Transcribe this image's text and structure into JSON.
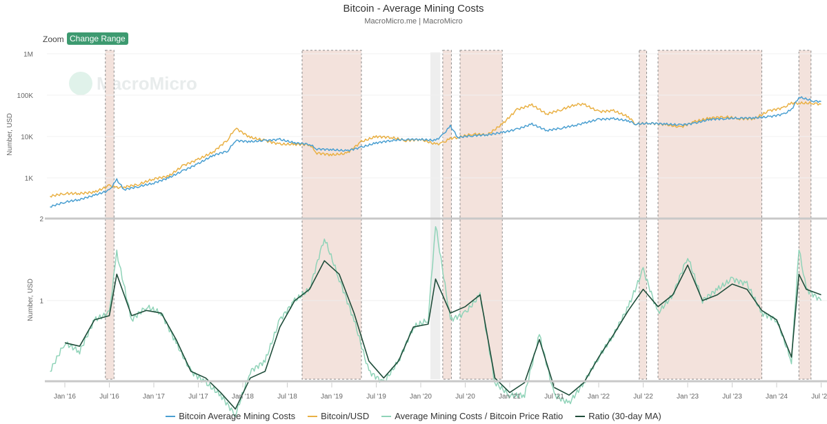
{
  "header": {
    "title": "Bitcoin - Average Mining Costs",
    "subtitle": "MacroMicro.me | MacroMicro",
    "zoom_label": "Zoom",
    "change_range_label": "Change Range",
    "watermark": "MacroMicro"
  },
  "colors": {
    "mining_cost": "#4a9fd1",
    "btc_usd": "#e9b043",
    "ratio": "#8fd3b8",
    "ratio_ma": "#1f4d3a",
    "shade": "#f3e2dc",
    "shade_grey": "#eeeeee",
    "button": "#3d9a70"
  },
  "chart_data": [
    {
      "type": "line",
      "panel": "top",
      "yscale": "log",
      "ylabel": "Number, USD",
      "yticks": [
        "1M",
        "100K",
        "10K",
        "1K"
      ],
      "ytick_values": [
        1000000,
        100000,
        10000,
        1000
      ],
      "x": [
        "2015-11",
        "2016-01",
        "2016-03",
        "2016-05",
        "2016-07",
        "2016-08",
        "2016-09",
        "2016-11",
        "2017-01",
        "2017-03",
        "2017-05",
        "2017-07",
        "2017-09",
        "2017-11",
        "2017-12",
        "2018-02",
        "2018-04",
        "2018-06",
        "2018-08",
        "2018-10",
        "2018-11",
        "2019-01",
        "2019-03",
        "2019-05",
        "2019-07",
        "2019-09",
        "2019-11",
        "2020-01",
        "2020-03",
        "2020-04",
        "2020-05",
        "2020-06",
        "2020-08",
        "2020-10",
        "2020-12",
        "2021-02",
        "2021-04",
        "2021-06",
        "2021-08",
        "2021-10",
        "2021-11",
        "2022-01",
        "2022-03",
        "2022-05",
        "2022-06",
        "2022-08",
        "2022-10",
        "2022-12",
        "2023-02",
        "2023-04",
        "2023-06",
        "2023-08",
        "2023-10",
        "2023-12",
        "2024-02",
        "2024-03",
        "2024-04",
        "2024-06",
        "2024-07"
      ],
      "series": [
        {
          "name": "Bitcoin Average Mining Costs",
          "values": [
            200,
            260,
            300,
            380,
            500,
            900,
            520,
            620,
            750,
            1000,
            1500,
            2200,
            3500,
            4500,
            8000,
            7500,
            8000,
            8500,
            7000,
            6500,
            5000,
            4800,
            4500,
            5500,
            7000,
            8000,
            8500,
            8500,
            8000,
            11000,
            18000,
            9500,
            10500,
            11000,
            12500,
            15000,
            20000,
            14000,
            16000,
            19000,
            21000,
            26000,
            27000,
            24000,
            20000,
            21000,
            20000,
            19000,
            21000,
            26000,
            27000,
            28000,
            28000,
            30000,
            35000,
            45000,
            90000,
            72000,
            70000
          ]
        },
        {
          "name": "Bitcoin/USD",
          "values": [
            360,
            420,
            420,
            450,
            650,
            580,
            600,
            700,
            950,
            1100,
            2000,
            2800,
            4200,
            8500,
            16000,
            9500,
            8000,
            6500,
            6500,
            6400,
            4000,
            3600,
            3900,
            7500,
            10000,
            9500,
            8000,
            8500,
            6500,
            7000,
            9000,
            9500,
            11500,
            11000,
            20000,
            45000,
            58000,
            35000,
            45000,
            60000,
            60000,
            40000,
            42000,
            30000,
            20000,
            21000,
            19500,
            16800,
            23000,
            28000,
            30000,
            27000,
            27000,
            42000,
            50000,
            65000,
            64000,
            64000,
            60000
          ]
        }
      ]
    },
    {
      "type": "line",
      "panel": "bottom",
      "yscale": "log",
      "ylabel": "Number, USD",
      "yticks": [
        "2",
        "1"
      ],
      "ytick_values": [
        2,
        1
      ],
      "x": [
        "2015-11",
        "2016-01",
        "2016-03",
        "2016-05",
        "2016-07",
        "2016-08",
        "2016-10",
        "2016-12",
        "2017-02",
        "2017-04",
        "2017-06",
        "2017-08",
        "2017-10",
        "2017-12",
        "2018-02",
        "2018-04",
        "2018-06",
        "2018-08",
        "2018-10",
        "2018-12",
        "2019-02",
        "2019-04",
        "2019-06",
        "2019-08",
        "2019-10",
        "2019-12",
        "2020-02",
        "2020-03",
        "2020-05",
        "2020-07",
        "2020-09",
        "2020-11",
        "2021-01",
        "2021-03",
        "2021-05",
        "2021-07",
        "2021-09",
        "2021-11",
        "2022-01",
        "2022-03",
        "2022-05",
        "2022-07",
        "2022-09",
        "2022-11",
        "2023-01",
        "2023-03",
        "2023-05",
        "2023-07",
        "2023-09",
        "2023-11",
        "2024-01",
        "2024-03",
        "2024-04",
        "2024-05",
        "2024-07"
      ],
      "series": [
        {
          "name": "Average Mining Costs / Bitcoin Price Ratio",
          "values": [
            0.55,
            0.7,
            0.65,
            0.85,
            0.9,
            1.5,
            0.85,
            0.95,
            0.9,
            0.7,
            0.55,
            0.5,
            0.45,
            0.38,
            0.55,
            0.6,
            0.85,
            1.0,
            1.1,
            1.7,
            1.2,
            0.85,
            0.55,
            0.5,
            0.6,
            0.8,
            0.85,
            1.9,
            0.85,
            0.9,
            1.05,
            0.5,
            0.45,
            0.45,
            0.75,
            0.45,
            0.42,
            0.5,
            0.62,
            0.75,
            0.95,
            1.3,
            0.9,
            1.05,
            1.45,
            1.0,
            1.1,
            1.2,
            1.15,
            0.9,
            0.85,
            0.6,
            1.55,
            1.1,
            1.0
          ]
        },
        {
          "name": "Ratio (30-day MA)",
          "values": [
            null,
            0.7,
            0.68,
            0.85,
            0.88,
            1.25,
            0.88,
            0.92,
            0.9,
            0.72,
            0.55,
            0.52,
            0.46,
            0.4,
            0.52,
            0.55,
            0.8,
            1.0,
            1.1,
            1.4,
            1.25,
            0.9,
            0.6,
            0.52,
            0.6,
            0.8,
            0.82,
            1.2,
            0.9,
            0.95,
            1.05,
            0.52,
            0.46,
            0.5,
            0.72,
            0.48,
            0.45,
            0.5,
            0.62,
            0.75,
            0.92,
            1.1,
            0.95,
            1.05,
            1.35,
            1.0,
            1.05,
            1.15,
            1.1,
            0.92,
            0.85,
            0.62,
            1.25,
            1.1,
            1.05
          ]
        }
      ]
    }
  ],
  "x_axis": {
    "ticks": [
      "Jan '16",
      "Jul '16",
      "Jan '17",
      "Jul '17",
      "Jan '18",
      "Jul '18",
      "Jan '19",
      "Jul '19",
      "Jan '20",
      "Jul '20",
      "Jan '21",
      "Jul '21",
      "Jan '22",
      "Jul '22",
      "Jan '23",
      "Jul '23",
      "Jan '24",
      "Jul '24"
    ],
    "tick_dates": [
      "2016-01",
      "2016-07",
      "2017-01",
      "2017-07",
      "2018-01",
      "2018-07",
      "2019-01",
      "2019-07",
      "2020-01",
      "2020-07",
      "2021-01",
      "2021-07",
      "2022-01",
      "2022-07",
      "2023-01",
      "2023-07",
      "2024-01",
      "2024-07"
    ]
  },
  "shaded_periods": [
    {
      "start": "2016-06-15",
      "end": "2016-07-20",
      "style": "dashed"
    },
    {
      "start": "2018-09-01",
      "end": "2019-05-01",
      "style": "dashed"
    },
    {
      "start": "2020-02-10",
      "end": "2020-03-20",
      "style": "grey"
    },
    {
      "start": "2020-03-30",
      "end": "2020-05-05",
      "style": "dashed"
    },
    {
      "start": "2020-06-10",
      "end": "2020-12-01",
      "style": "dashed"
    },
    {
      "start": "2022-06-15",
      "end": "2022-07-15",
      "style": "dashed"
    },
    {
      "start": "2022-09-01",
      "end": "2023-11-01",
      "style": "dashed"
    },
    {
      "start": "2024-04-01",
      "end": "2024-05-20",
      "style": "dashed"
    }
  ],
  "legend": [
    {
      "label": "Bitcoin Average Mining Costs",
      "color_key": "mining_cost"
    },
    {
      "label": "Bitcoin/USD",
      "color_key": "btc_usd"
    },
    {
      "label": "Average Mining Costs / Bitcoin Price Ratio",
      "color_key": "ratio"
    },
    {
      "label": "Ratio (30-day MA)",
      "color_key": "ratio_ma"
    }
  ]
}
